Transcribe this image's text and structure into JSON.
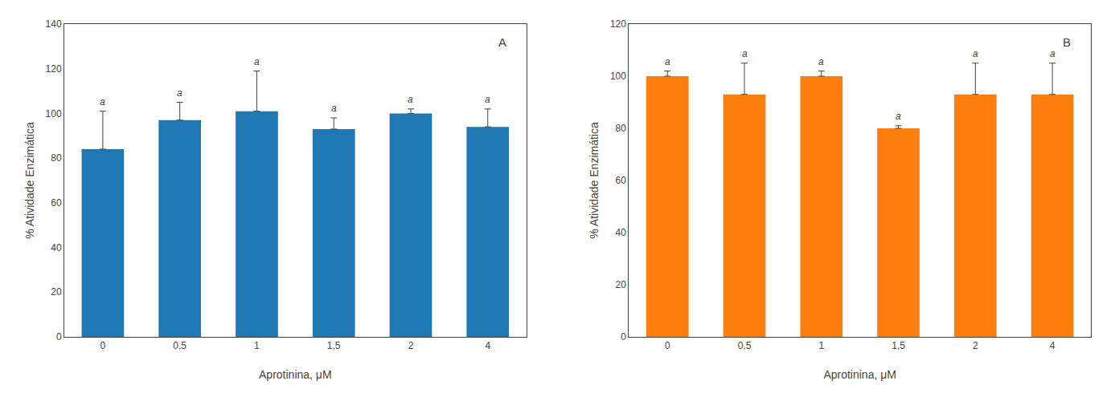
{
  "chart_data": [
    {
      "type": "bar",
      "categories": [
        "0",
        "0,5",
        "1",
        "1,5",
        "2",
        "4"
      ],
      "values": [
        84,
        97,
        101,
        93,
        100,
        94
      ],
      "errors": [
        17,
        8,
        18,
        5,
        2,
        8
      ],
      "letters": [
        "a",
        "a",
        "a",
        "a",
        "a",
        "a"
      ],
      "ylabel": "% Atividade Enzimática",
      "xlabel": "Aprotinina, μM",
      "ylim": [
        0,
        140
      ],
      "yticks": [
        0,
        20,
        40,
        60,
        80,
        100,
        120,
        140
      ],
      "panel_label": "A",
      "grid": false
    },
    {
      "type": "bar",
      "categories": [
        "0",
        "0,5",
        "1",
        "1,5",
        "2",
        "4"
      ],
      "values": [
        100,
        93,
        100,
        80,
        93,
        93
      ],
      "errors": [
        2,
        12,
        2,
        1,
        12,
        12
      ],
      "letters": [
        "a",
        "a",
        "a",
        "a",
        "a",
        "a"
      ],
      "ylabel": "% Atividade Enzimática",
      "xlabel": "Aprotinina, μM",
      "ylim": [
        0,
        120
      ],
      "yticks": [
        0,
        20,
        40,
        60,
        80,
        100,
        120
      ],
      "panel_label": "B",
      "grid": false
    }
  ]
}
